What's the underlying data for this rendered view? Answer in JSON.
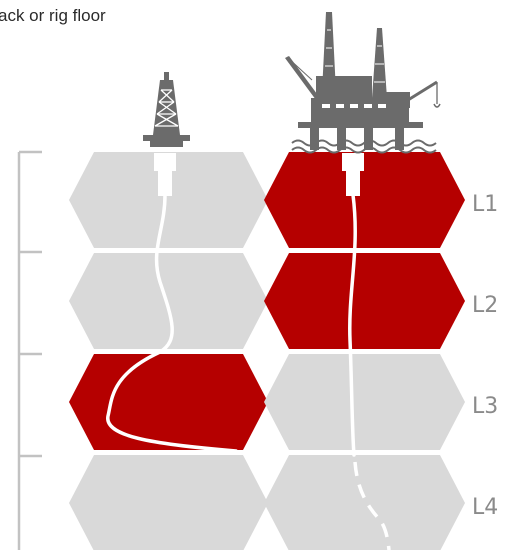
{
  "caption": "ack or rig floor",
  "colors": {
    "inactive_cell": "#d9d9d9",
    "active_cell": "#b50000",
    "wellbore": "#ffffff",
    "bracket": "#c2c2c2",
    "label": "#8a8a8a",
    "structure": "#6b6b6b"
  },
  "levels": [
    {
      "label": "L1",
      "onshore_active": false,
      "offshore_active": true
    },
    {
      "label": "L2",
      "onshore_active": false,
      "offshore_active": true
    },
    {
      "label": "L3",
      "onshore_active": true,
      "offshore_active": false
    },
    {
      "label": "L4",
      "onshore_active": false,
      "offshore_active": false
    }
  ],
  "icons": {
    "onshore": "onshore-derrick-icon",
    "offshore": "offshore-platform-icon"
  }
}
